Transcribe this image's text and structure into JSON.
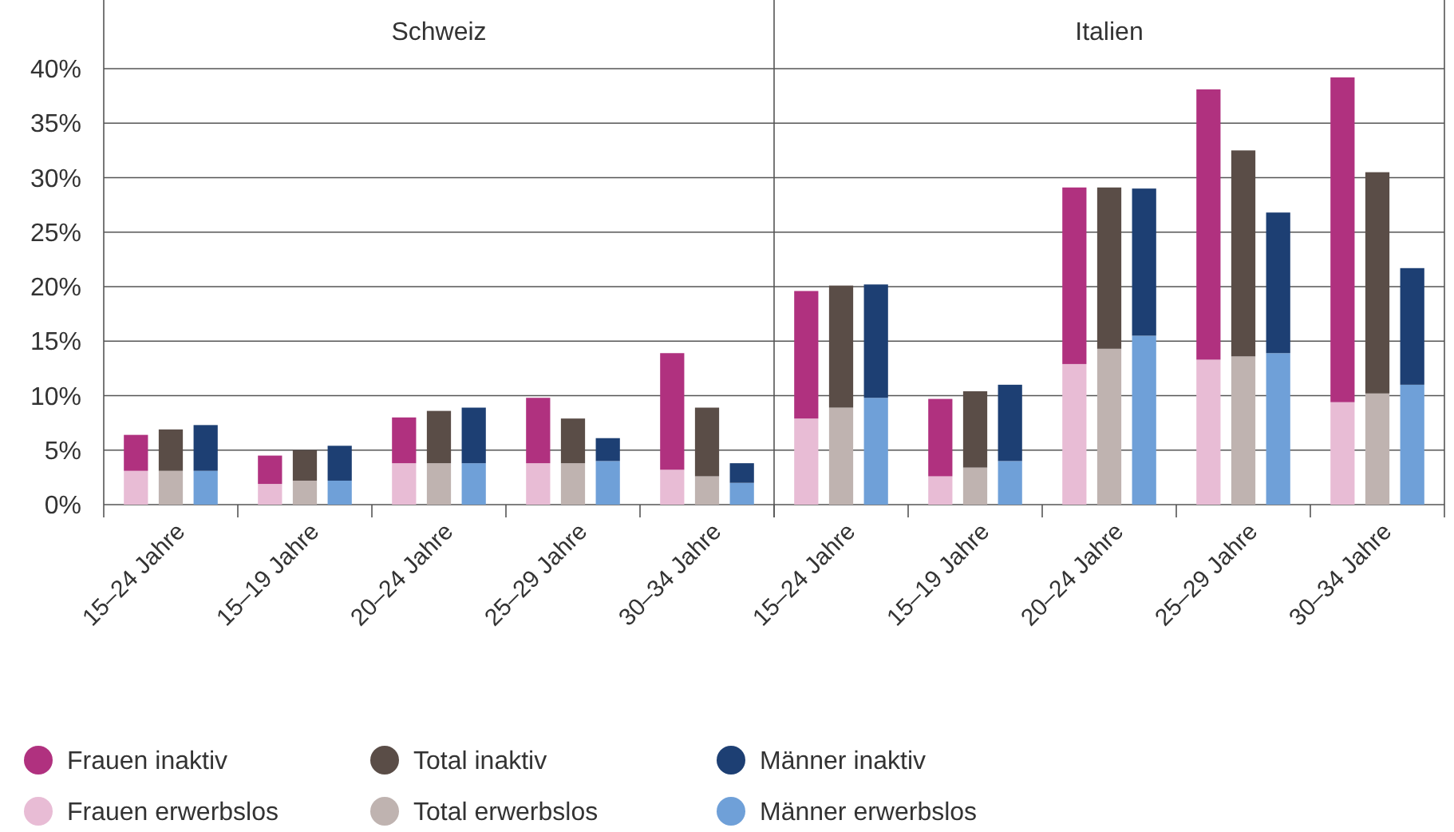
{
  "chart_data": [
    {
      "type": "bar",
      "title": "Schweiz",
      "stacked": true,
      "grid": "y",
      "legend": "bottom",
      "categories": [
        null,
        "15–24 Jahre",
        null,
        null,
        "15–19 Jahre",
        null,
        null,
        "20–24 Jahre",
        null,
        null,
        "25–29 Jahre",
        null,
        null,
        "30–34 Jahre",
        null
      ],
      "ylim": [
        0,
        40
      ],
      "yticks": [
        {
          "value": 0,
          "label": "0%"
        },
        {
          "value": 5,
          "label": "5%"
        },
        {
          "value": 10,
          "label": "10%"
        },
        {
          "value": 15,
          "label": "15%"
        },
        {
          "value": 20,
          "label": "20%"
        },
        {
          "value": 25,
          "label": "25%"
        },
        {
          "value": 30,
          "label": "30%"
        },
        {
          "value": 35,
          "label": "35%"
        },
        {
          "value": 40,
          "label": "40%"
        }
      ],
      "series": [
        {
          "name": "Frauen erwerbslos",
          "color": "#e8bcd5",
          "values": [
            3.1,
            null,
            null,
            1.9,
            null,
            null,
            3.8,
            null,
            null,
            3.8,
            null,
            null,
            3.2,
            null,
            null
          ]
        },
        {
          "name": "Frauen inaktiv",
          "color": "#b0317f",
          "values": [
            3.3,
            null,
            null,
            2.6,
            null,
            null,
            4.2,
            null,
            null,
            6.0,
            null,
            null,
            10.7,
            null,
            null
          ]
        },
        {
          "name": "Total erwerbslos",
          "color": "#bfb3b0",
          "values": [
            null,
            3.1,
            null,
            null,
            2.2,
            null,
            null,
            3.8,
            null,
            null,
            3.8,
            null,
            null,
            2.6,
            null
          ]
        },
        {
          "name": "Total inaktiv",
          "color": "#5a4d47",
          "values": [
            null,
            3.8,
            null,
            null,
            2.8,
            null,
            null,
            4.8,
            null,
            null,
            4.1,
            null,
            null,
            6.3,
            null
          ]
        },
        {
          "name": "Männer erwerbslos",
          "color": "#6fa0d8",
          "values": [
            null,
            null,
            3.1,
            null,
            null,
            2.2,
            null,
            null,
            3.8,
            null,
            null,
            4.0,
            null,
            null,
            2.0
          ]
        },
        {
          "name": "Männer inaktiv",
          "color": "#1d3f73",
          "values": [
            null,
            null,
            4.2,
            null,
            null,
            3.2,
            null,
            null,
            5.1,
            null,
            null,
            2.1,
            null,
            null,
            1.8
          ]
        }
      ]
    },
    {
      "type": "bar",
      "title": "Italien",
      "stacked": true,
      "grid": "y",
      "tick_labels": "x",
      "categories": [
        null,
        "15–24 Jahre",
        null,
        null,
        "15–19 Jahre",
        null,
        null,
        "20–24 Jahre",
        null,
        null,
        "25–29 Jahre",
        null,
        null,
        "30–34 Jahre",
        null
      ],
      "ylim": [
        0,
        40
      ],
      "yticks": [
        {
          "value": 0,
          "label": null
        },
        {
          "value": 5,
          "label": null
        },
        {
          "value": 10,
          "label": null
        },
        {
          "value": 15,
          "label": null
        },
        {
          "value": 20,
          "label": null
        },
        {
          "value": 25,
          "label": null
        },
        {
          "value": 30,
          "label": null
        },
        {
          "value": 35,
          "label": null
        },
        {
          "value": 40,
          "label": null
        }
      ],
      "series": [
        {
          "color": "#e8bcd5",
          "values": [
            7.9,
            null,
            null,
            2.6,
            null,
            null,
            12.9,
            null,
            null,
            13.3,
            null,
            null,
            9.4,
            null,
            null
          ]
        },
        {
          "color": "#b0317f",
          "values": [
            11.7,
            null,
            null,
            7.1,
            null,
            null,
            16.2,
            null,
            null,
            24.8,
            null,
            null,
            29.8,
            null,
            null
          ]
        },
        {
          "color": "#bfb3b0",
          "values": [
            null,
            8.9,
            null,
            null,
            3.4,
            null,
            null,
            14.3,
            null,
            null,
            13.6,
            null,
            null,
            10.2,
            null
          ]
        },
        {
          "color": "#5a4d47",
          "values": [
            null,
            11.2,
            null,
            null,
            7.0,
            null,
            null,
            14.8,
            null,
            null,
            18.9,
            null,
            null,
            20.3,
            null
          ]
        },
        {
          "color": "#6fa0d8",
          "values": [
            null,
            null,
            9.8,
            null,
            null,
            4.0,
            null,
            null,
            15.5,
            null,
            null,
            13.9,
            null,
            null,
            11.0
          ]
        },
        {
          "color": "#1d3f73",
          "values": [
            null,
            null,
            10.4,
            null,
            null,
            7.0,
            null,
            null,
            13.5,
            null,
            null,
            12.9,
            null,
            null,
            10.7
          ]
        }
      ]
    }
  ]
}
